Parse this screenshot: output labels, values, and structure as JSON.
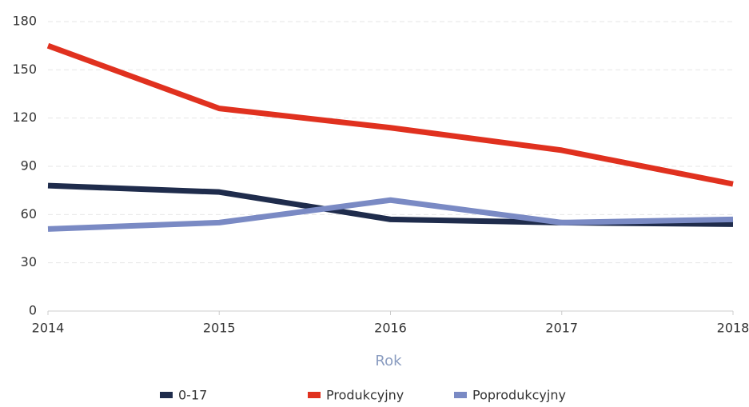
{
  "chart_data": {
    "type": "line",
    "x": [
      2014,
      2015,
      2016,
      2017,
      2018
    ],
    "xlabel": "Rok",
    "series": [
      {
        "name": "0-17",
        "color": "#1f2c4c",
        "values": [
          78,
          74,
          57,
          55,
          54
        ]
      },
      {
        "name": "Produkcyjny",
        "color": "#e0311f",
        "values": [
          165,
          126,
          114,
          100,
          79
        ]
      },
      {
        "name": "Poprodukcyjny",
        "color": "#7a8ac4",
        "values": [
          51,
          55,
          69,
          55,
          57
        ]
      }
    ],
    "xlim": [
      2014,
      2018
    ],
    "xticks": [
      2014,
      2015,
      2016,
      2017,
      2018
    ],
    "ylim": [
      0,
      180
    ],
    "yticks": [
      0,
      30,
      60,
      90,
      120,
      150,
      180
    ],
    "grid": true,
    "legend": "bottom"
  }
}
